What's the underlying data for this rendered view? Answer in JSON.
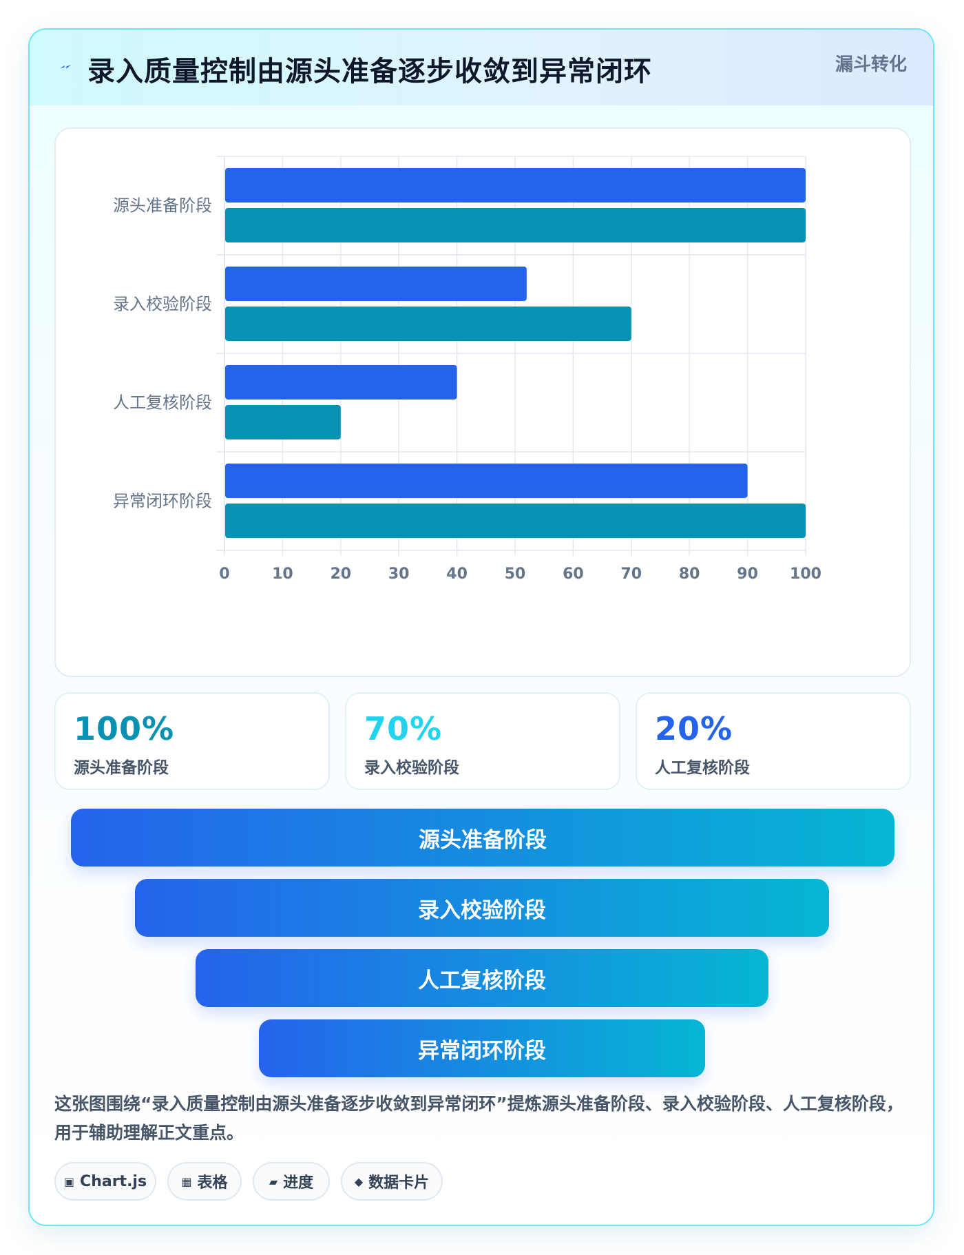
{
  "header": {
    "title": "录入质量控制由源头准备逐步收敛到异常闭环",
    "tag": "漏斗转化"
  },
  "chart_data": {
    "type": "bar",
    "orientation": "horizontal",
    "categories": [
      "源头准备阶段",
      "录入校验阶段",
      "人工复核阶段",
      "异常闭环阶段"
    ],
    "series": [
      {
        "values": [
          100,
          52,
          40,
          90
        ],
        "color": "#2563eb"
      },
      {
        "values": [
          100,
          70,
          20,
          100
        ],
        "color": "#0891b2"
      }
    ],
    "xlim": [
      0,
      100
    ],
    "xticks": [
      0,
      10,
      20,
      30,
      40,
      50,
      60,
      70,
      80,
      90,
      100
    ],
    "grid": true,
    "legend": "none"
  },
  "stats": [
    {
      "value": "100%",
      "label": "源头准备阶段",
      "color": "#0891b2"
    },
    {
      "value": "70%",
      "label": "录入校验阶段",
      "color": "#22d3ee"
    },
    {
      "value": "20%",
      "label": "人工复核阶段",
      "color": "#2563eb"
    }
  ],
  "funnel": [
    "源头准备阶段",
    "录入校验阶段",
    "人工复核阶段",
    "异常闭环阶段"
  ],
  "description": "这张图围绕“录入质量控制由源头准备逐步收敛到异常闭环”提炼源头准备阶段、录入校验阶段、人工复核阶段，用于辅助理解正文重点。",
  "chips": [
    {
      "icon": "▣",
      "icon_name": "chart-icon",
      "label": "Chart.js"
    },
    {
      "icon": "▦",
      "icon_name": "table-icon",
      "label": "表格"
    },
    {
      "icon": "▰",
      "icon_name": "progress-icon",
      "label": "进度"
    },
    {
      "icon": "◆",
      "icon_name": "card-icon",
      "label": "数据卡片"
    }
  ]
}
